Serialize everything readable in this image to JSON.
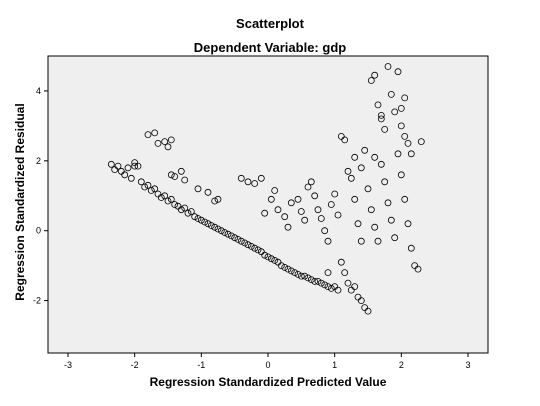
{
  "chart_data": {
    "type": "scatter",
    "title": "Scatterplot",
    "subtitle": "Dependent Variable: gdp",
    "xlabel": "Regression Standardized Predicted Value",
    "ylabel": "Regression Standardized Residual",
    "xlim": [
      -3.3,
      3.3
    ],
    "ylim": [
      -3.5,
      5.0
    ],
    "xticks": [
      -3,
      -2,
      -1,
      0,
      1,
      2,
      3
    ],
    "yticks": [
      -2,
      0,
      2,
      4
    ],
    "grid": false,
    "legend": "none",
    "marker": "open-circle",
    "plot_background": "#efefef",
    "points": [
      [
        -2.35,
        1.9
      ],
      [
        -2.3,
        1.75
      ],
      [
        -2.25,
        1.85
      ],
      [
        -2.2,
        1.7
      ],
      [
        -2.15,
        1.6
      ],
      [
        -2.1,
        1.8
      ],
      [
        -2.05,
        1.5
      ],
      [
        -2.0,
        1.85
      ],
      [
        -1.9,
        1.4
      ],
      [
        -1.85,
        1.25
      ],
      [
        -1.8,
        1.3
      ],
      [
        -1.75,
        1.15
      ],
      [
        -1.7,
        1.2
      ],
      [
        -1.65,
        1.05
      ],
      [
        -1.6,
        0.95
      ],
      [
        -1.55,
        1.0
      ],
      [
        -1.5,
        0.85
      ],
      [
        -1.45,
        0.9
      ],
      [
        -1.4,
        0.75
      ],
      [
        -1.35,
        0.7
      ],
      [
        -1.3,
        0.6
      ],
      [
        -1.25,
        0.65
      ],
      [
        -1.2,
        0.5
      ],
      [
        -1.15,
        0.55
      ],
      [
        -1.1,
        0.4
      ],
      [
        -1.05,
        0.35
      ],
      [
        -1.0,
        0.3
      ],
      [
        -0.95,
        0.25
      ],
      [
        -0.9,
        0.2
      ],
      [
        -0.85,
        0.15
      ],
      [
        -0.8,
        0.1
      ],
      [
        -0.75,
        0.05
      ],
      [
        -0.7,
        0.0
      ],
      [
        -0.65,
        -0.05
      ],
      [
        -0.6,
        -0.1
      ],
      [
        -0.55,
        -0.15
      ],
      [
        -0.5,
        -0.2
      ],
      [
        -0.45,
        -0.25
      ],
      [
        -0.4,
        -0.3
      ],
      [
        -0.35,
        -0.35
      ],
      [
        -0.3,
        -0.4
      ],
      [
        -0.25,
        -0.45
      ],
      [
        -0.2,
        -0.5
      ],
      [
        -0.15,
        -0.55
      ],
      [
        -0.1,
        -0.6
      ],
      [
        -0.05,
        -0.7
      ],
      [
        0.0,
        -0.75
      ],
      [
        0.05,
        -0.8
      ],
      [
        0.1,
        -0.85
      ],
      [
        0.15,
        -0.9
      ],
      [
        0.2,
        -1.0
      ],
      [
        0.25,
        -1.05
      ],
      [
        0.3,
        -1.1
      ],
      [
        0.35,
        -1.15
      ],
      [
        0.4,
        -1.2
      ],
      [
        0.45,
        -1.25
      ],
      [
        0.5,
        -1.3
      ],
      [
        0.55,
        -1.3
      ],
      [
        0.6,
        -1.35
      ],
      [
        0.65,
        -1.4
      ],
      [
        0.7,
        -1.45
      ],
      [
        0.75,
        -1.45
      ],
      [
        0.8,
        -1.5
      ],
      [
        0.85,
        -1.55
      ],
      [
        0.9,
        -1.6
      ],
      [
        0.95,
        -1.65
      ],
      [
        1.0,
        -1.6
      ],
      [
        1.05,
        -1.7
      ],
      [
        -1.8,
        2.75
      ],
      [
        -1.7,
        2.8
      ],
      [
        -1.65,
        2.5
      ],
      [
        -1.55,
        2.55
      ],
      [
        -1.5,
        2.4
      ],
      [
        -1.45,
        2.6
      ],
      [
        -2.0,
        1.95
      ],
      [
        -1.95,
        1.85
      ],
      [
        -1.45,
        1.6
      ],
      [
        -1.4,
        1.55
      ],
      [
        -1.3,
        1.7
      ],
      [
        -1.25,
        1.45
      ],
      [
        -1.05,
        1.2
      ],
      [
        -0.9,
        1.1
      ],
      [
        -0.8,
        0.85
      ],
      [
        -0.75,
        0.9
      ],
      [
        -0.4,
        1.5
      ],
      [
        -0.3,
        1.4
      ],
      [
        -0.2,
        1.35
      ],
      [
        -0.1,
        1.5
      ],
      [
        0.05,
        0.9
      ],
      [
        0.1,
        1.15
      ],
      [
        -0.05,
        0.5
      ],
      [
        0.15,
        0.6
      ],
      [
        0.25,
        0.4
      ],
      [
        0.3,
        0.1
      ],
      [
        0.35,
        0.8
      ],
      [
        0.45,
        0.9
      ],
      [
        0.5,
        0.55
      ],
      [
        0.55,
        0.3
      ],
      [
        0.6,
        1.25
      ],
      [
        0.65,
        1.4
      ],
      [
        0.7,
        1.0
      ],
      [
        0.75,
        0.6
      ],
      [
        0.8,
        0.35
      ],
      [
        0.85,
        0.0
      ],
      [
        0.9,
        -0.3
      ],
      [
        0.95,
        0.75
      ],
      [
        1.0,
        1.05
      ],
      [
        1.05,
        0.45
      ],
      [
        1.1,
        2.7
      ],
      [
        1.15,
        2.6
      ],
      [
        1.2,
        1.7
      ],
      [
        1.25,
        1.5
      ],
      [
        1.3,
        0.9
      ],
      [
        1.35,
        0.2
      ],
      [
        1.4,
        -0.3
      ],
      [
        1.45,
        -2.2
      ],
      [
        1.5,
        -2.3
      ],
      [
        1.55,
        4.3
      ],
      [
        1.6,
        4.45
      ],
      [
        1.65,
        3.6
      ],
      [
        1.7,
        3.2
      ],
      [
        1.75,
        2.9
      ],
      [
        1.8,
        4.7
      ],
      [
        1.85,
        3.9
      ],
      [
        1.9,
        3.4
      ],
      [
        1.95,
        4.55
      ],
      [
        2.0,
        3.0
      ],
      [
        2.05,
        2.7
      ],
      [
        2.1,
        2.5
      ],
      [
        2.15,
        2.2
      ],
      [
        1.4,
        1.8
      ],
      [
        1.5,
        1.2
      ],
      [
        1.55,
        0.6
      ],
      [
        1.6,
        0.1
      ],
      [
        1.65,
        -0.3
      ],
      [
        1.7,
        1.9
      ],
      [
        1.75,
        1.4
      ],
      [
        1.8,
        0.8
      ],
      [
        1.85,
        0.3
      ],
      [
        1.9,
        -0.2
      ],
      [
        1.95,
        2.2
      ],
      [
        2.0,
        1.6
      ],
      [
        2.05,
        0.9
      ],
      [
        2.1,
        0.2
      ],
      [
        2.15,
        -0.5
      ],
      [
        2.2,
        -1.0
      ],
      [
        2.25,
        -1.1
      ],
      [
        2.3,
        2.55
      ],
      [
        2.05,
        3.8
      ],
      [
        2.0,
        3.5
      ],
      [
        1.7,
        3.3
      ],
      [
        1.6,
        2.1
      ],
      [
        1.45,
        2.3
      ],
      [
        1.3,
        2.1
      ],
      [
        1.2,
        -1.5
      ],
      [
        1.25,
        -1.7
      ],
      [
        1.3,
        -1.6
      ],
      [
        1.35,
        -1.9
      ],
      [
        1.4,
        -2.0
      ],
      [
        1.15,
        -1.2
      ],
      [
        1.1,
        -0.9
      ],
      [
        0.9,
        -1.2
      ]
    ]
  }
}
